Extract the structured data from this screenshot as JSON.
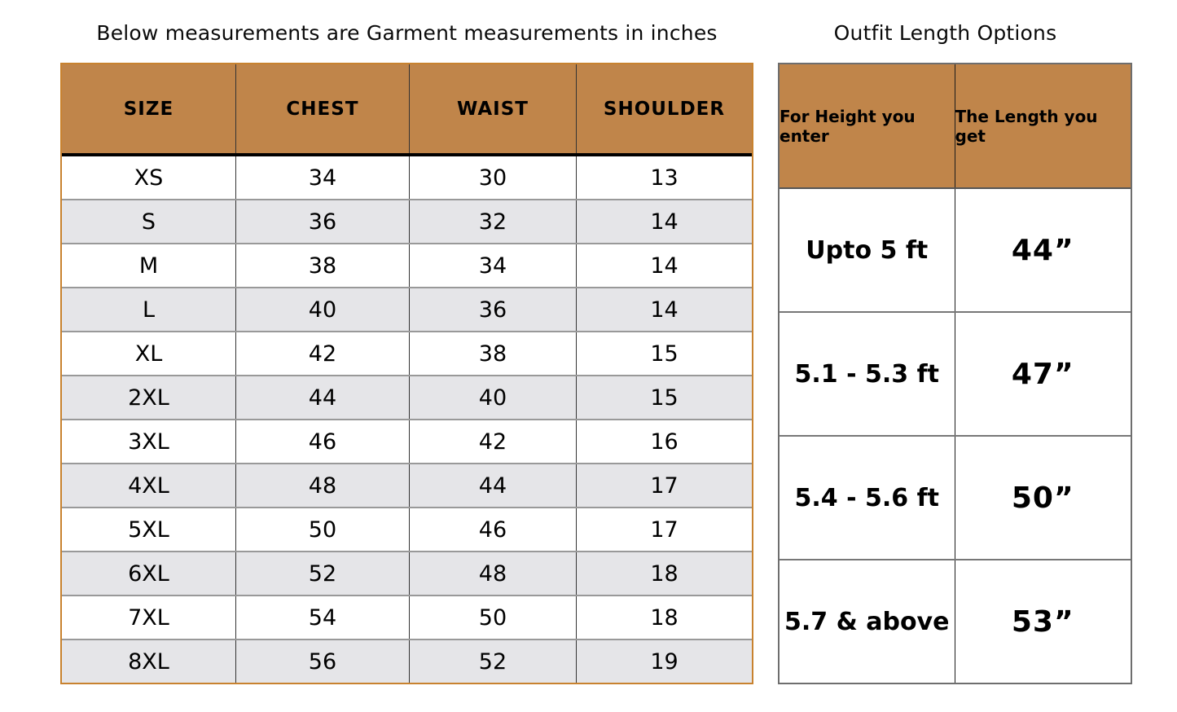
{
  "chart_data": [
    {
      "type": "table",
      "title": "Below measurements are Garment measurements in inches",
      "columns": [
        "SIZE",
        "CHEST",
        "WAIST",
        "SHOULDER"
      ],
      "rows": [
        [
          "XS",
          "34",
          "30",
          "13"
        ],
        [
          "S",
          "36",
          "32",
          "14"
        ],
        [
          "M",
          "38",
          "34",
          "14"
        ],
        [
          "L",
          "40",
          "36",
          "14"
        ],
        [
          "XL",
          "42",
          "38",
          "15"
        ],
        [
          "2XL",
          "44",
          "40",
          "15"
        ],
        [
          "3XL",
          "46",
          "42",
          "16"
        ],
        [
          "4XL",
          "48",
          "44",
          "17"
        ],
        [
          "5XL",
          "50",
          "46",
          "17"
        ],
        [
          "6XL",
          "52",
          "48",
          "18"
        ],
        [
          "7XL",
          "54",
          "50",
          "18"
        ],
        [
          "8XL",
          "56",
          "52",
          "19"
        ]
      ],
      "layout": {
        "zebra_striping": true,
        "header_position": "top"
      }
    },
    {
      "type": "table",
      "title": "Outfit Length Options",
      "columns": [
        "For Height you enter",
        "The Length you get"
      ],
      "rows": [
        [
          "Upto 5 ft",
          "44”"
        ],
        [
          "5.1 - 5.3 ft",
          "47”"
        ],
        [
          "5.4 - 5.6 ft",
          "50”"
        ],
        [
          "5.7 & above",
          "53”"
        ]
      ],
      "layout": {
        "zebra_striping": false,
        "header_position": "top"
      }
    }
  ],
  "colors": {
    "page_bg": "#ffffff",
    "header_bg": "#c0854a",
    "zebra_row_bg": "#e5e5e8",
    "row_bg": "#ffffff",
    "left_table_border": "#c8822f",
    "right_table_border": "#6e6e6e",
    "row_divider": "#999999",
    "right_row_divider": "#777777",
    "column_divider": "#333333",
    "text": "#000000"
  }
}
